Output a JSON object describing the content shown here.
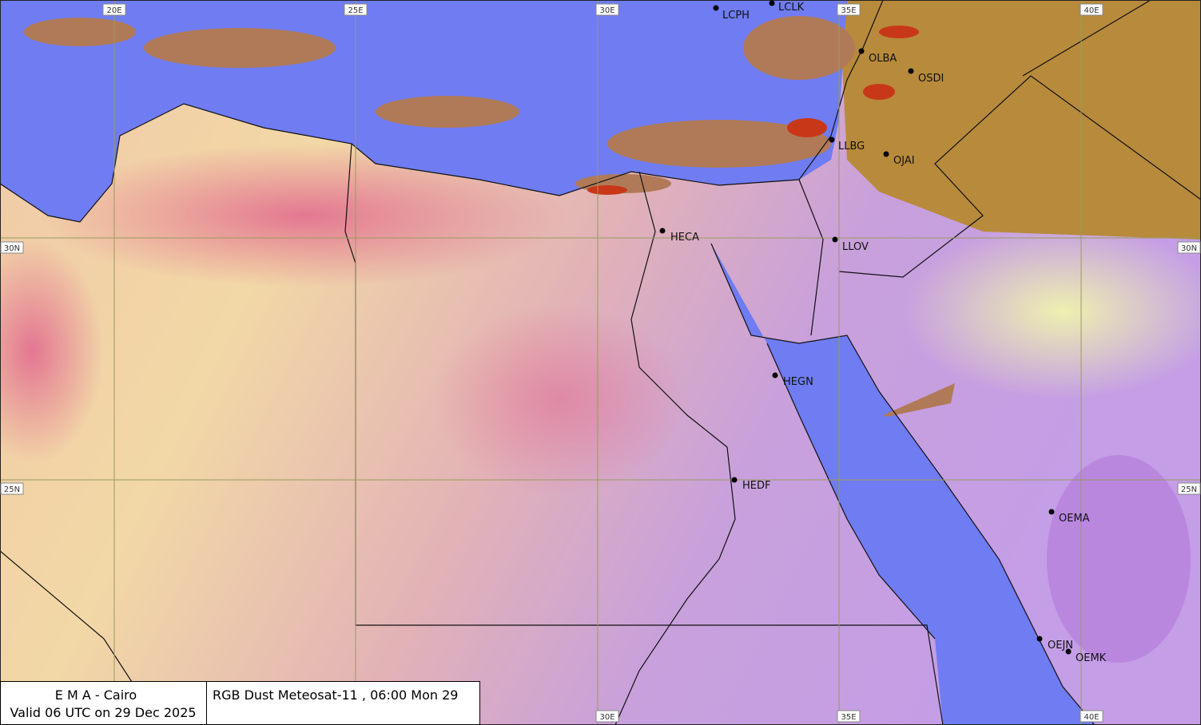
{
  "grid": {
    "top_lon_labels": [
      "20E",
      "25E",
      "30E",
      "35E",
      "40E"
    ],
    "bottom_lon_labels": [
      "30E",
      "35E",
      "40E"
    ],
    "left_lat_labels": [
      "30N",
      "25N"
    ],
    "right_lat_labels": [
      "30N",
      "25N"
    ]
  },
  "stations": [
    "LCPH",
    "LCLK",
    "OLBA",
    "OSDI",
    "LLBG",
    "OJAI",
    "HECA",
    "LLOV",
    "HEGN",
    "HEDF",
    "OEMA",
    "OEJN",
    "OEMK"
  ],
  "footer": {
    "agency": "E M A  -  Cairo",
    "valid": "Valid 06 UTC on 29 Dec 2025",
    "product": "RGB Dust Meteosat-11 , 06:00   Mon 29"
  }
}
